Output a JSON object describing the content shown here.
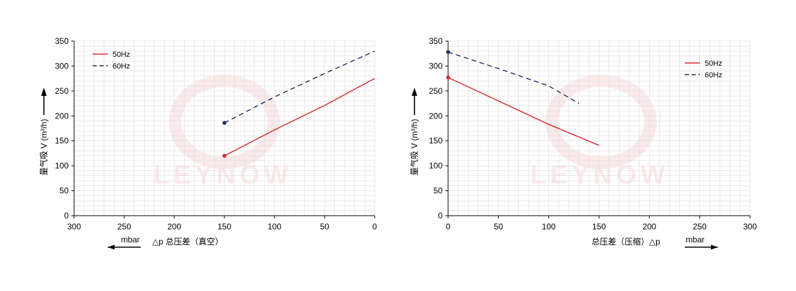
{
  "chart_data": [
    {
      "type": "line",
      "ylabel": "量气吸 V (m³/h)",
      "xlabel": "△p 总压差（真空）",
      "unit": "mbar",
      "xlim": [
        300,
        0
      ],
      "ylim": [
        0,
        350
      ],
      "x_reversed": true,
      "xticks": [
        300,
        250,
        200,
        150,
        100,
        50,
        0
      ],
      "yticks": [
        0,
        50,
        100,
        150,
        200,
        250,
        300,
        350
      ],
      "grid": true,
      "legend_position": "top-left",
      "watermark": "LEYNOW",
      "series": [
        {
          "name": "50Hz",
          "style": "solid",
          "color": "#d9262e",
          "x": [
            150,
            100,
            50,
            0
          ],
          "y": [
            120,
            172,
            221,
            275
          ]
        },
        {
          "name": "60Hz",
          "style": "dashed",
          "color": "#1e2a5e",
          "x": [
            150,
            100,
            50,
            0
          ],
          "y": [
            186,
            238,
            285,
            330
          ]
        }
      ]
    },
    {
      "type": "line",
      "ylabel": "量气吸 V (m³/h)",
      "xlabel": "总压差（压缩）△p",
      "unit": "mbar",
      "xlim": [
        0,
        300
      ],
      "ylim": [
        0,
        350
      ],
      "x_reversed": false,
      "xticks": [
        0,
        50,
        100,
        150,
        200,
        250,
        300
      ],
      "yticks": [
        0,
        50,
        100,
        150,
        200,
        250,
        300,
        350
      ],
      "grid": true,
      "legend_position": "top-right",
      "watermark": "LEYNOW",
      "series": [
        {
          "name": "50Hz",
          "style": "solid",
          "color": "#d9262e",
          "x": [
            0,
            50,
            100,
            150
          ],
          "y": [
            277,
            230,
            183,
            141
          ]
        },
        {
          "name": "60Hz",
          "style": "dashed",
          "color": "#1e2a5e",
          "x": [
            0,
            50,
            100,
            130
          ],
          "y": [
            328,
            295,
            260,
            225
          ]
        }
      ]
    }
  ]
}
